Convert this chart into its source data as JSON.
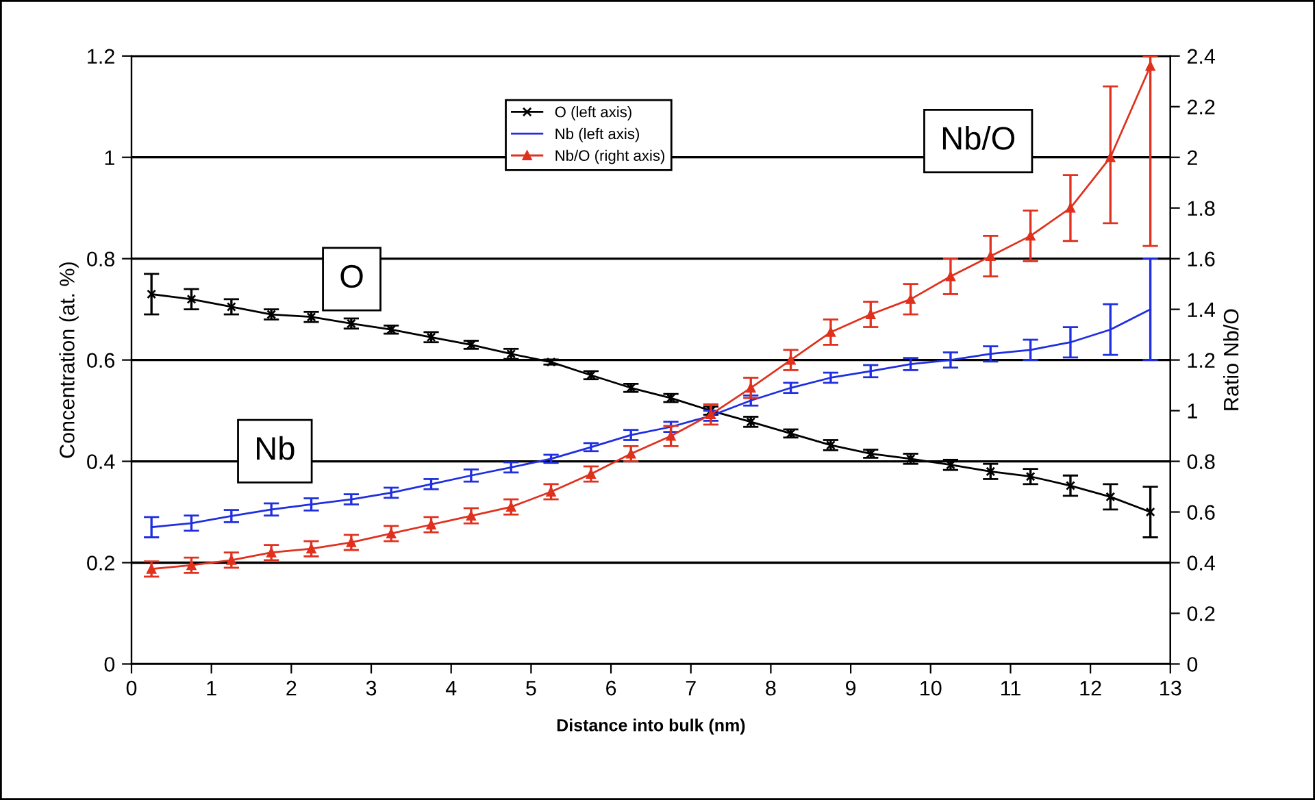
{
  "chart_data": {
    "type": "line",
    "xlabel": "Distance into bulk (nm)",
    "ylabel": "Concentration (at. %)",
    "y2label": "Ratio Nb/O",
    "x": [
      0.25,
      0.75,
      1.25,
      1.75,
      2.25,
      2.75,
      3.25,
      3.75,
      4.25,
      4.75,
      5.25,
      5.75,
      6.25,
      6.75,
      7.25,
      7.75,
      8.25,
      8.75,
      9.25,
      9.75,
      10.25,
      10.75,
      11.25,
      11.75,
      12.25,
      12.75
    ],
    "series": [
      {
        "name": "O (left axis)",
        "color": "#000000",
        "marker": "cross",
        "values": [
          0.73,
          0.72,
          0.705,
          0.69,
          0.685,
          0.672,
          0.66,
          0.645,
          0.63,
          0.612,
          0.596,
          0.57,
          0.545,
          0.525,
          0.5,
          0.478,
          0.455,
          0.432,
          0.415,
          0.405,
          0.393,
          0.38,
          0.37,
          0.352,
          0.33,
          0.3
        ],
        "errors": [
          0.04,
          0.02,
          0.015,
          0.01,
          0.01,
          0.01,
          0.008,
          0.01,
          0.008,
          0.01,
          0.005,
          0.008,
          0.008,
          0.008,
          0.008,
          0.01,
          0.008,
          0.01,
          0.008,
          0.01,
          0.01,
          0.015,
          0.015,
          0.02,
          0.025,
          0.05
        ]
      },
      {
        "name": "Nb (left axis)",
        "color": "#1f2ee0",
        "marker": "none",
        "values": [
          0.27,
          0.278,
          0.292,
          0.305,
          0.315,
          0.325,
          0.338,
          0.355,
          0.372,
          0.388,
          0.405,
          0.428,
          0.452,
          0.468,
          0.49,
          0.52,
          0.545,
          0.565,
          0.578,
          0.592,
          0.6,
          0.612,
          0.62,
          0.635,
          0.66,
          0.7
        ],
        "errors": [
          0.02,
          0.015,
          0.012,
          0.012,
          0.012,
          0.01,
          0.01,
          0.01,
          0.012,
          0.01,
          0.008,
          0.008,
          0.01,
          0.01,
          0.01,
          0.01,
          0.01,
          0.01,
          0.012,
          0.012,
          0.015,
          0.015,
          0.02,
          0.03,
          0.05,
          0.1
        ]
      },
      {
        "name": "Nb/O (right axis)",
        "color": "#e0301e",
        "marker": "triangle",
        "axis": "y2",
        "values": [
          0.375,
          0.39,
          0.41,
          0.44,
          0.455,
          0.48,
          0.515,
          0.55,
          0.585,
          0.62,
          0.68,
          0.75,
          0.83,
          0.9,
          0.985,
          1.09,
          1.2,
          1.31,
          1.38,
          1.44,
          1.53,
          1.61,
          1.69,
          1.8,
          2.0,
          2.36
        ],
        "errors": [
          0.03,
          0.03,
          0.03,
          0.03,
          0.03,
          0.03,
          0.03,
          0.03,
          0.03,
          0.03,
          0.03,
          0.03,
          0.03,
          0.04,
          0.04,
          0.04,
          0.04,
          0.05,
          0.05,
          0.06,
          0.07,
          0.08,
          0.1,
          0.13,
          [
            1.74,
            2.28
          ],
          [
            1.65,
            2.4
          ]
        ]
      }
    ],
    "xlim": [
      0,
      13
    ],
    "xticks": [
      0,
      1,
      2,
      3,
      4,
      5,
      6,
      7,
      8,
      9,
      10,
      11,
      12,
      13
    ],
    "ylim": [
      0,
      1.2
    ],
    "yticks": [
      0,
      0.2,
      0.4,
      0.6,
      0.8,
      1,
      1.2
    ],
    "y2lim": [
      0,
      2.4
    ],
    "y2ticks": [
      0,
      0.2,
      0.4,
      0.6,
      0.8,
      1,
      1.2,
      1.4,
      1.6,
      1.8,
      2,
      2.2,
      2.4
    ],
    "grid": "y",
    "legend": "top",
    "line_style": "solid",
    "annotations": [
      "O",
      "Nb",
      "Nb/O"
    ]
  }
}
